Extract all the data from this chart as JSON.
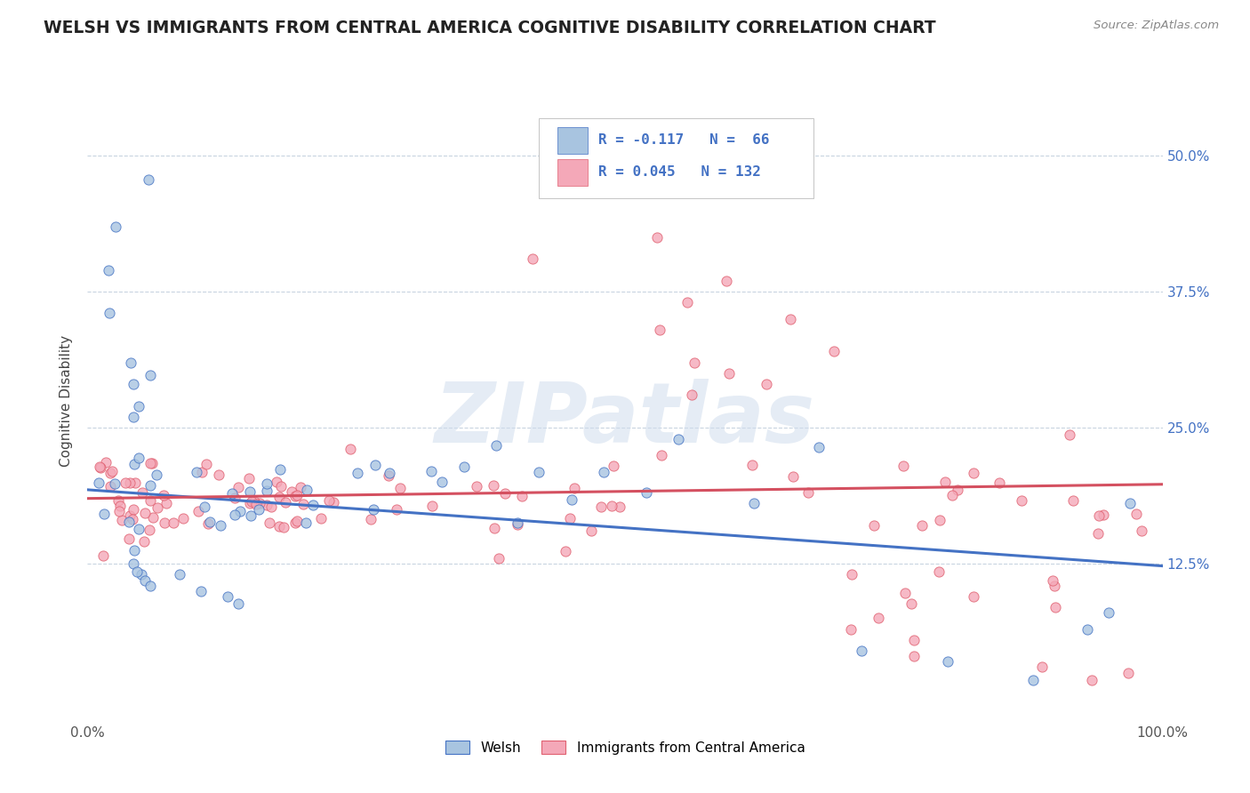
{
  "title": "WELSH VS IMMIGRANTS FROM CENTRAL AMERICA COGNITIVE DISABILITY CORRELATION CHART",
  "source": "Source: ZipAtlas.com",
  "ylabel": "Cognitive Disability",
  "ytick_values": [
    0.125,
    0.25,
    0.375,
    0.5
  ],
  "xlim": [
    0.0,
    1.0
  ],
  "ylim": [
    -0.02,
    0.57
  ],
  "legend_r1": "-0.117",
  "legend_n1": "66",
  "legend_r2": "0.045",
  "legend_n2": "132",
  "color_welsh_fill": "#a8c4e0",
  "color_welsh_edge": "#4472c4",
  "color_imm_fill": "#f4a8b8",
  "color_imm_edge": "#e06070",
  "color_line_welsh": "#4472c4",
  "color_line_immigrants": "#d45060",
  "background_color": "#ffffff",
  "watermark": "ZIPatlas",
  "welsh_line_x": [
    0.0,
    1.0
  ],
  "welsh_line_y": [
    0.193,
    0.123
  ],
  "imm_line_x": [
    0.0,
    1.0
  ],
  "imm_line_y": [
    0.185,
    0.198
  ]
}
